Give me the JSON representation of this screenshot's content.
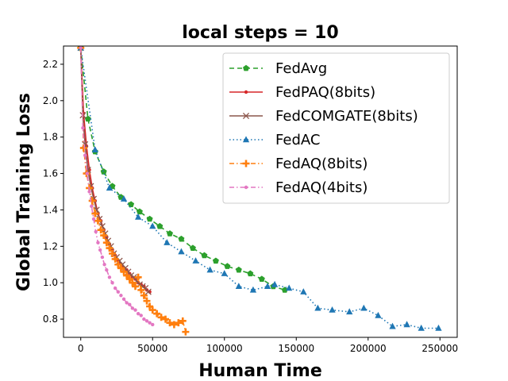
{
  "chart_data": {
    "type": "line",
    "title": "local steps = 10",
    "xlabel": "Human Time",
    "ylabel": "Global Training Loss",
    "xlim": [
      -12000,
      262000
    ],
    "ylim": [
      0.7,
      2.3
    ],
    "xticks": [
      0,
      50000,
      100000,
      150000,
      200000,
      250000
    ],
    "xtick_labels": [
      "0",
      "50000",
      "100000",
      "150000",
      "200000",
      "250000"
    ],
    "yticks": [
      0.8,
      1.0,
      1.2,
      1.4,
      1.6,
      1.8,
      2.0,
      2.2
    ],
    "ytick_labels": [
      "0.8",
      "1.0",
      "1.2",
      "1.4",
      "1.6",
      "1.8",
      "2.0",
      "2.2"
    ],
    "grid": false,
    "legend_position": "top-right",
    "series": [
      {
        "name": "FedAvg",
        "color": "#2ca02c",
        "dash": "6,4",
        "marker": "pentagon",
        "x": [
          0,
          5000,
          10000,
          16000,
          22000,
          28000,
          35000,
          41000,
          48000,
          55000,
          62000,
          70000,
          78000,
          86000,
          94000,
          102000,
          110000,
          118000,
          126000,
          134000,
          142000
        ],
        "y": [
          2.29,
          1.9,
          1.72,
          1.61,
          1.53,
          1.47,
          1.43,
          1.39,
          1.35,
          1.31,
          1.27,
          1.24,
          1.19,
          1.15,
          1.12,
          1.09,
          1.07,
          1.05,
          1.02,
          0.98,
          0.96
        ]
      },
      {
        "name": "FedPAQ(8bits)",
        "color": "#d62728",
        "dash": "",
        "marker": "dot",
        "x": [
          0,
          2000,
          4000,
          6000,
          8000,
          10000,
          12000,
          14000,
          16000,
          18000,
          20000,
          22000,
          24000,
          26000,
          28000,
          30000,
          32000,
          34000,
          36000,
          38000,
          40000,
          42000,
          44000,
          46000,
          48000
        ],
        "y": [
          2.29,
          1.93,
          1.75,
          1.62,
          1.52,
          1.45,
          1.38,
          1.34,
          1.29,
          1.25,
          1.21,
          1.18,
          1.15,
          1.12,
          1.1,
          1.08,
          1.07,
          1.05,
          1.03,
          1.02,
          1.0,
          0.99,
          0.98,
          0.96,
          0.95
        ]
      },
      {
        "name": "FedCOMGATE(8bits)",
        "color": "#8c564b",
        "dash": "",
        "marker": "x",
        "x": [
          0,
          1500,
          3000,
          5000,
          7000,
          9000,
          11000,
          13000,
          15000,
          17000,
          19000,
          21000,
          23000,
          25000,
          27000,
          29000,
          31000,
          33000,
          35000,
          37000,
          39000,
          41000,
          43000,
          45000,
          47000
        ],
        "y": [
          2.29,
          1.92,
          1.76,
          1.62,
          1.53,
          1.46,
          1.4,
          1.35,
          1.31,
          1.27,
          1.23,
          1.2,
          1.16,
          1.14,
          1.12,
          1.1,
          1.08,
          1.06,
          1.04,
          1.03,
          1.01,
          0.99,
          0.98,
          0.97,
          0.95
        ]
      },
      {
        "name": "FedAC",
        "color": "#1f77b4",
        "dash": "1.5,3",
        "marker": "triangle",
        "x": [
          0,
          10000,
          20000,
          30000,
          40000,
          50000,
          60000,
          70000,
          80000,
          90000,
          100000,
          110000,
          120000,
          130000,
          135000,
          145000,
          155000,
          165000,
          175000,
          187000,
          197000,
          207000,
          217000,
          227000,
          237000,
          249000
        ],
        "y": [
          2.29,
          1.73,
          1.52,
          1.46,
          1.36,
          1.31,
          1.22,
          1.17,
          1.12,
          1.07,
          1.05,
          0.98,
          0.96,
          0.98,
          0.99,
          0.97,
          0.95,
          0.86,
          0.85,
          0.84,
          0.86,
          0.82,
          0.76,
          0.77,
          0.75,
          0.75
        ]
      },
      {
        "name": "FedAQ(8bits)",
        "color": "#ff7f0e",
        "dash": "6,3,1.5,3",
        "marker": "plus",
        "x": [
          0,
          2000,
          4000,
          6000,
          8000,
          10000,
          12000,
          14000,
          16000,
          18000,
          20000,
          22000,
          24000,
          26000,
          28000,
          30000,
          32000,
          34000,
          36000,
          38000,
          40000,
          42000,
          44000,
          46000,
          48000,
          50000,
          53000,
          56000,
          59000,
          62000,
          65000,
          68000,
          71000,
          73000
        ],
        "y": [
          2.29,
          1.74,
          1.6,
          1.52,
          1.45,
          1.38,
          1.34,
          1.29,
          1.26,
          1.22,
          1.19,
          1.16,
          1.13,
          1.1,
          1.08,
          1.06,
          1.04,
          1.02,
          1.0,
          0.98,
          1.03,
          0.96,
          0.93,
          0.9,
          0.87,
          0.85,
          0.83,
          0.81,
          0.8,
          0.78,
          0.77,
          0.78,
          0.79,
          0.73
        ]
      },
      {
        "name": "FedAQ(4bits)",
        "color": "#e377c2",
        "dash": "6,3,1.5,3",
        "marker": "dot",
        "x": [
          0,
          1500,
          3000,
          4500,
          6000,
          7500,
          9000,
          10500,
          12000,
          13500,
          15000,
          16500,
          18000,
          20000,
          22000,
          24000,
          26000,
          28000,
          30000,
          32000,
          34000,
          36000,
          38000,
          40000,
          42000,
          44000,
          46000,
          48000,
          50000
        ],
        "y": [
          2.29,
          1.85,
          1.7,
          1.6,
          1.5,
          1.42,
          1.35,
          1.28,
          1.22,
          1.18,
          1.14,
          1.1,
          1.07,
          1.03,
          1.0,
          0.97,
          0.95,
          0.93,
          0.91,
          0.89,
          0.88,
          0.86,
          0.85,
          0.83,
          0.82,
          0.8,
          0.79,
          0.78,
          0.77
        ]
      }
    ]
  }
}
